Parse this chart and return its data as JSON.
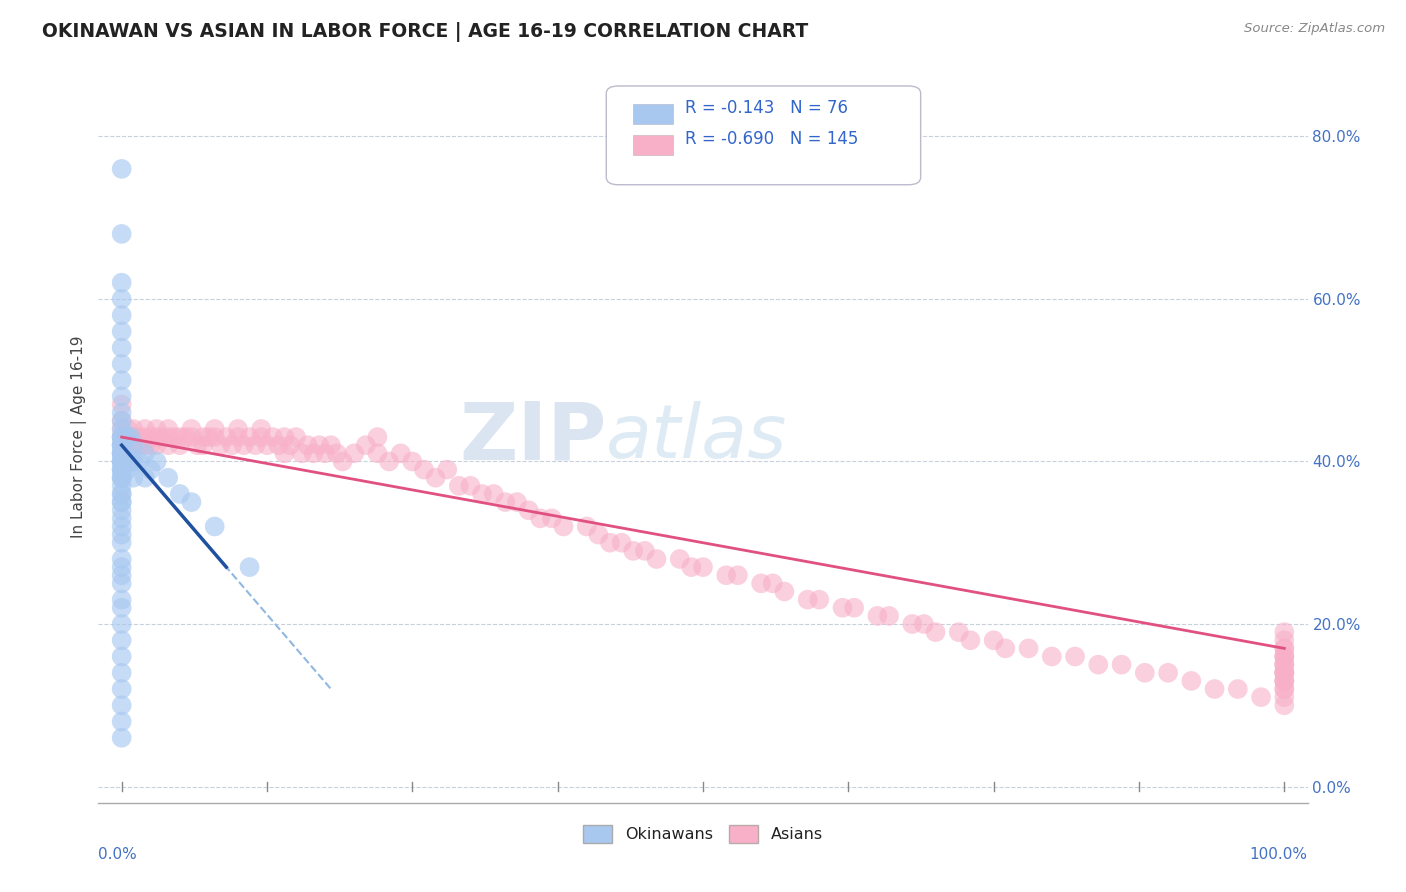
{
  "title": "OKINAWAN VS ASIAN IN LABOR FORCE | AGE 16-19 CORRELATION CHART",
  "source_text": "Source: ZipAtlas.com",
  "ylabel": "In Labor Force | Age 16-19",
  "xlim": [
    -0.02,
    1.02
  ],
  "ylim": [
    -0.02,
    0.88
  ],
  "ytick_positions": [
    0.0,
    0.2,
    0.4,
    0.6,
    0.8
  ],
  "ytick_labels": [
    "0.0%",
    "20.0%",
    "40.0%",
    "60.0%",
    "80.0%"
  ],
  "xtick_left_label": "0.0%",
  "xtick_right_label": "100.0%",
  "blue_color": "#A8C8F0",
  "blue_edge_color": "#A8C8F0",
  "pink_color": "#F8B0C8",
  "pink_edge_color": "#F8B0C8",
  "blue_line_color": "#2050A0",
  "pink_line_color": "#E05080",
  "dashed_line_color": "#90B8E0",
  "watermark_zip": "ZIP",
  "watermark_atlas": "atlas",
  "legend_label1": "Okinawans",
  "legend_label2": "Asians",
  "blue_r": "-0.143",
  "blue_n": "76",
  "pink_r": "-0.690",
  "pink_n": "145",
  "blue_scatter_x": [
    0.0,
    0.0,
    0.0,
    0.0,
    0.0,
    0.0,
    0.0,
    0.0,
    0.0,
    0.0,
    0.0,
    0.0,
    0.0,
    0.0,
    0.0,
    0.0,
    0.0,
    0.0,
    0.0,
    0.0,
    0.0,
    0.0,
    0.0,
    0.0,
    0.0,
    0.0,
    0.0,
    0.0,
    0.0,
    0.0,
    0.0,
    0.0,
    0.0,
    0.0,
    0.0,
    0.0,
    0.0,
    0.0,
    0.0,
    0.0,
    0.0,
    0.0,
    0.0,
    0.0,
    0.0,
    0.0,
    0.0,
    0.0,
    0.0,
    0.0,
    0.0,
    0.0,
    0.0,
    0.0,
    0.0,
    0.0,
    0.0,
    0.0,
    0.005,
    0.005,
    0.005,
    0.008,
    0.008,
    0.01,
    0.01,
    0.01,
    0.015,
    0.02,
    0.02,
    0.025,
    0.03,
    0.04,
    0.05,
    0.06,
    0.08,
    0.11
  ],
  "blue_scatter_y": [
    0.76,
    0.68,
    0.62,
    0.6,
    0.58,
    0.56,
    0.54,
    0.52,
    0.5,
    0.48,
    0.46,
    0.45,
    0.44,
    0.43,
    0.43,
    0.42,
    0.42,
    0.42,
    0.41,
    0.41,
    0.41,
    0.4,
    0.4,
    0.4,
    0.39,
    0.39,
    0.38,
    0.38,
    0.37,
    0.36,
    0.35,
    0.34,
    0.33,
    0.32,
    0.31,
    0.3,
    0.28,
    0.27,
    0.26,
    0.25,
    0.23,
    0.22,
    0.2,
    0.18,
    0.16,
    0.14,
    0.12,
    0.1,
    0.08,
    0.06,
    0.43,
    0.42,
    0.41,
    0.4,
    0.39,
    0.38,
    0.36,
    0.35,
    0.43,
    0.41,
    0.39,
    0.43,
    0.4,
    0.42,
    0.4,
    0.38,
    0.4,
    0.41,
    0.38,
    0.39,
    0.4,
    0.38,
    0.36,
    0.35,
    0.32,
    0.27
  ],
  "pink_scatter_x": [
    0.0,
    0.0,
    0.0,
    0.0,
    0.005,
    0.005,
    0.005,
    0.008,
    0.01,
    0.01,
    0.01,
    0.015,
    0.015,
    0.02,
    0.02,
    0.02,
    0.025,
    0.025,
    0.03,
    0.03,
    0.03,
    0.035,
    0.04,
    0.04,
    0.04,
    0.045,
    0.05,
    0.05,
    0.055,
    0.06,
    0.06,
    0.065,
    0.07,
    0.07,
    0.075,
    0.08,
    0.08,
    0.085,
    0.09,
    0.095,
    0.1,
    0.1,
    0.105,
    0.11,
    0.115,
    0.12,
    0.12,
    0.125,
    0.13,
    0.135,
    0.14,
    0.14,
    0.145,
    0.15,
    0.155,
    0.16,
    0.165,
    0.17,
    0.175,
    0.18,
    0.185,
    0.19,
    0.2,
    0.21,
    0.22,
    0.22,
    0.23,
    0.24,
    0.25,
    0.26,
    0.27,
    0.28,
    0.29,
    0.3,
    0.31,
    0.32,
    0.33,
    0.34,
    0.35,
    0.36,
    0.37,
    0.38,
    0.4,
    0.41,
    0.42,
    0.43,
    0.44,
    0.45,
    0.46,
    0.48,
    0.49,
    0.5,
    0.52,
    0.53,
    0.55,
    0.56,
    0.57,
    0.59,
    0.6,
    0.62,
    0.63,
    0.65,
    0.66,
    0.68,
    0.69,
    0.7,
    0.72,
    0.73,
    0.75,
    0.76,
    0.78,
    0.8,
    0.82,
    0.84,
    0.86,
    0.88,
    0.9,
    0.92,
    0.94,
    0.96,
    0.98,
    1.0,
    1.0,
    1.0,
    1.0,
    1.0,
    1.0,
    1.0,
    1.0,
    1.0,
    1.0,
    1.0,
    1.0,
    1.0,
    1.0,
    1.0,
    1.0,
    1.0,
    1.0,
    1.0,
    1.0,
    1.0
  ],
  "pink_scatter_y": [
    0.47,
    0.45,
    0.44,
    0.43,
    0.44,
    0.43,
    0.42,
    0.43,
    0.44,
    0.43,
    0.42,
    0.43,
    0.42,
    0.44,
    0.43,
    0.42,
    0.43,
    0.42,
    0.44,
    0.43,
    0.42,
    0.43,
    0.44,
    0.43,
    0.42,
    0.43,
    0.43,
    0.42,
    0.43,
    0.44,
    0.43,
    0.42,
    0.43,
    0.42,
    0.43,
    0.44,
    0.43,
    0.42,
    0.43,
    0.42,
    0.44,
    0.43,
    0.42,
    0.43,
    0.42,
    0.43,
    0.44,
    0.42,
    0.43,
    0.42,
    0.43,
    0.41,
    0.42,
    0.43,
    0.41,
    0.42,
    0.41,
    0.42,
    0.41,
    0.42,
    0.41,
    0.4,
    0.41,
    0.42,
    0.43,
    0.41,
    0.4,
    0.41,
    0.4,
    0.39,
    0.38,
    0.39,
    0.37,
    0.37,
    0.36,
    0.36,
    0.35,
    0.35,
    0.34,
    0.33,
    0.33,
    0.32,
    0.32,
    0.31,
    0.3,
    0.3,
    0.29,
    0.29,
    0.28,
    0.28,
    0.27,
    0.27,
    0.26,
    0.26,
    0.25,
    0.25,
    0.24,
    0.23,
    0.23,
    0.22,
    0.22,
    0.21,
    0.21,
    0.2,
    0.2,
    0.19,
    0.19,
    0.18,
    0.18,
    0.17,
    0.17,
    0.16,
    0.16,
    0.15,
    0.15,
    0.14,
    0.14,
    0.13,
    0.12,
    0.12,
    0.11,
    0.19,
    0.18,
    0.17,
    0.16,
    0.17,
    0.16,
    0.15,
    0.14,
    0.16,
    0.15,
    0.14,
    0.13,
    0.15,
    0.14,
    0.13,
    0.12,
    0.14,
    0.13,
    0.12,
    0.11,
    0.1
  ]
}
